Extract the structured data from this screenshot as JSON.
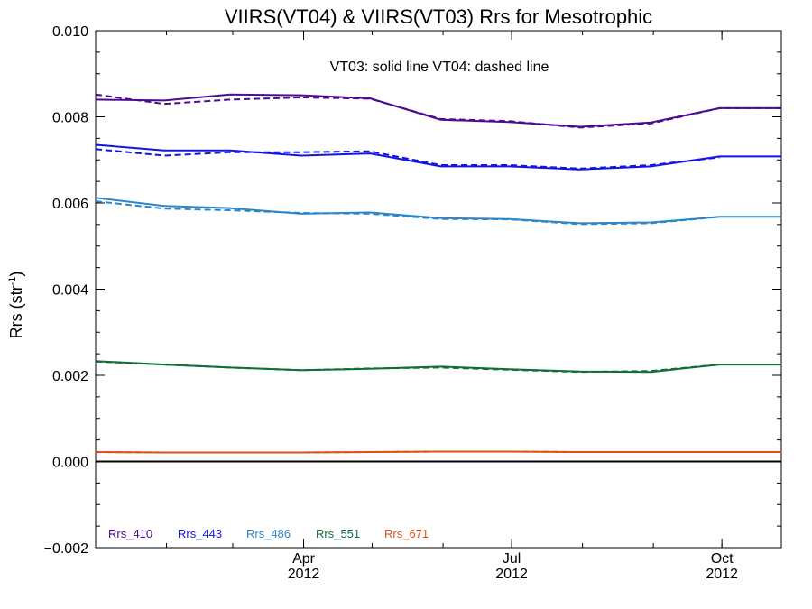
{
  "chart_data": {
    "type": "line",
    "title": "VIIRS(VT04) & VIIRS(VT03)  Rrs for Mesotrophic",
    "ylabel": "Rrs (str",
    "ylabel_sup": "-1",
    "xlabel": "",
    "annotation": "VT03: solid line   VT04: dashed line",
    "ylim": [
      -0.002,
      0.01
    ],
    "yticks": [
      -0.002,
      0.0,
      0.002,
      0.004,
      0.006,
      0.008,
      0.01
    ],
    "ytick_labels": [
      "−0.002",
      "0.000",
      "0.002",
      "0.004",
      "0.006",
      "0.008",
      "0.010"
    ],
    "xlim": [
      "2012-01-01",
      "2012-10-27"
    ],
    "xticks": [
      {
        "date": "2012-04-01",
        "month": "Apr",
        "year": "2012"
      },
      {
        "date": "2012-07-01",
        "month": "Jul",
        "year": "2012"
      },
      {
        "date": "2012-10-01",
        "month": "Oct",
        "year": "2012"
      }
    ],
    "zero_line": true,
    "grid": false,
    "legend_position": "bottom-left",
    "x": [
      "2012-01-01",
      "2012-01-31",
      "2012-02-29",
      "2012-03-31",
      "2012-04-30",
      "2012-05-31",
      "2012-06-30",
      "2012-07-31",
      "2012-08-31",
      "2012-09-30",
      "2012-10-27"
    ],
    "series": [
      {
        "name": "Rrs_410",
        "color": "#4B0C8E",
        "vt03": [
          0.0084,
          0.00838,
          0.00852,
          0.0085,
          0.00843,
          0.00793,
          0.00788,
          0.00777,
          0.00787,
          0.0082,
          0.0082
        ],
        "vt04": [
          0.00852,
          0.0083,
          0.0084,
          0.00845,
          0.00842,
          0.00795,
          0.0079,
          0.00775,
          0.00785,
          0.0082,
          0.0082
        ]
      },
      {
        "name": "Rrs_443",
        "color": "#1414E6",
        "vt03": [
          0.00735,
          0.00722,
          0.00722,
          0.0071,
          0.00715,
          0.00685,
          0.00685,
          0.00678,
          0.00685,
          0.00708,
          0.00708
        ],
        "vt04": [
          0.00725,
          0.0071,
          0.00718,
          0.00718,
          0.0072,
          0.00688,
          0.00688,
          0.0068,
          0.00688,
          0.00706,
          0.00706
        ],
        "vt04_range": [
          "2012-01-01",
          "2012-09-30"
        ]
      },
      {
        "name": "Rrs_486",
        "color": "#2E86C8",
        "vt03": [
          0.00612,
          0.00593,
          0.00588,
          0.00575,
          0.00578,
          0.00565,
          0.00563,
          0.00553,
          0.00555,
          0.00568,
          0.00568
        ],
        "vt04": [
          0.00604,
          0.00587,
          0.00583,
          0.00577,
          0.00575,
          0.00563,
          0.00562,
          0.00551,
          0.00553,
          0.00568,
          0.00568
        ],
        "vt04_range": [
          "2012-01-01",
          "2012-09-30"
        ]
      },
      {
        "name": "Rrs_551",
        "color": "#0F6E3A",
        "vt03": [
          0.00233,
          0.00225,
          0.00218,
          0.00212,
          0.00215,
          0.0022,
          0.00214,
          0.00209,
          0.00208,
          0.00225,
          0.00225
        ],
        "vt04": [
          0.00232,
          0.00225,
          0.00218,
          0.00212,
          0.00216,
          0.00218,
          0.00213,
          0.00208,
          0.0021,
          0.00225,
          0.00225
        ],
        "vt04_range": [
          "2012-01-01",
          "2012-09-30"
        ]
      },
      {
        "name": "Rrs_671",
        "color": "#E0501A",
        "vt03": [
          0.00022,
          0.00021,
          0.00021,
          0.00021,
          0.00022,
          0.00023,
          0.00023,
          0.00022,
          0.00022,
          0.00022,
          0.00022
        ],
        "vt04": [
          0.00022,
          0.00021,
          0.00021,
          0.00021,
          0.00022,
          0.00023,
          0.00023,
          0.00022,
          0.00022,
          0.00022,
          0.00022
        ]
      }
    ]
  }
}
